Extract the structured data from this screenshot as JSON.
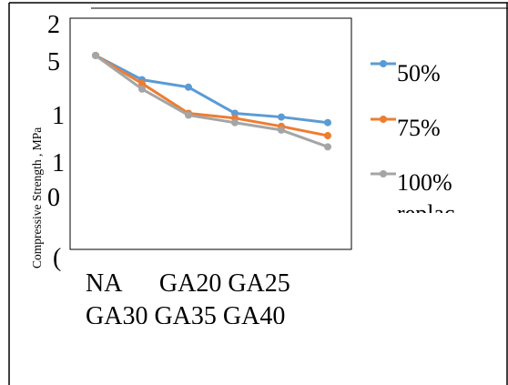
{
  "chart_data": {
    "type": "line",
    "ylabel": "Compressive Strength , MPa",
    "y_tick_labels": [
      "2",
      "5",
      "1",
      "1",
      "0",
      "("
    ],
    "x_tick_label_rows": [
      "NA      GA20 GA25",
      "GA30 GA35 GA40"
    ],
    "categories": [
      "NA",
      "GA20",
      "GA25",
      "GA30",
      "GA35",
      "GA40"
    ],
    "series": [
      {
        "name": "50%",
        "color": "#5b9bd5",
        "values": [
          52,
          45.5,
          43.5,
          36.5,
          35.5,
          34
        ]
      },
      {
        "name": "75%",
        "color": "#ed7d31",
        "values": [
          52,
          44.5,
          36.5,
          35.2,
          33,
          30.5
        ]
      },
      {
        "name": "100%",
        "color": "#a5a5a5",
        "values": [
          52,
          43,
          36,
          34,
          32,
          27.5
        ]
      }
    ],
    "legend_extra": "replac",
    "ylim": [
      0,
      62
    ],
    "legend_position": "right",
    "grid": false
  }
}
